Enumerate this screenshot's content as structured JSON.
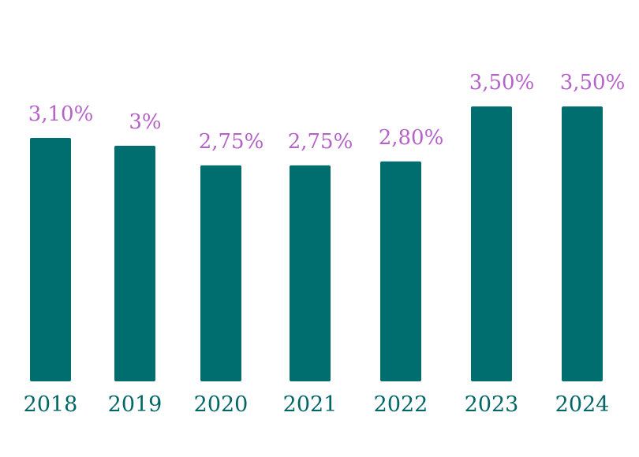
{
  "chart_data": {
    "type": "bar",
    "categories": [
      "2018",
      "2019",
      "2020",
      "2021",
      "2022",
      "2023",
      "2024"
    ],
    "values": [
      3.1,
      3.0,
      2.75,
      2.75,
      2.8,
      3.5,
      3.5
    ],
    "data_labels": [
      "3,10%",
      "3%",
      "2,75%",
      "2,75%",
      "2,80%",
      "3,50%",
      "3,50%"
    ],
    "title": "",
    "xlabel": "",
    "ylabel": "",
    "grid": false,
    "legend": "none",
    "colors": {
      "bar": "#006e6e",
      "data_label": "#b562c9",
      "tick_label": "#006666"
    }
  }
}
